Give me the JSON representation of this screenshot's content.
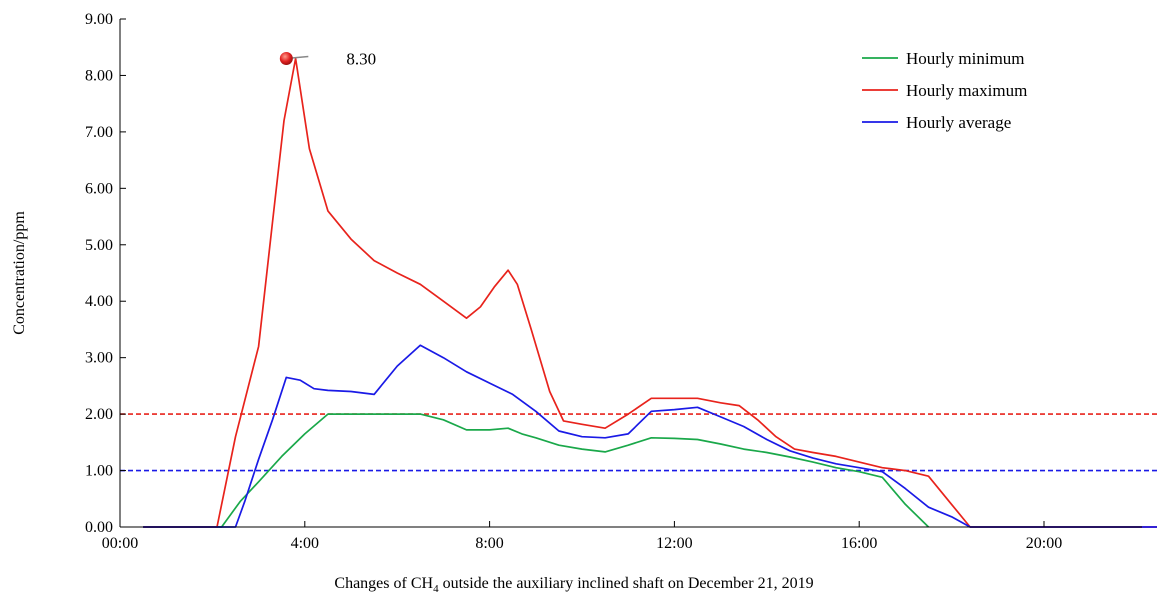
{
  "chart_data": {
    "type": "line",
    "xlabel_prefix": "Changes of CH",
    "xlabel_sub": "4",
    "xlabel_suffix": " outside the auxiliary inclined shaft on December 21, 2019",
    "ylabel": "Concentration/ppm",
    "xlim": [
      0,
      24
    ],
    "ylim": [
      0,
      9
    ],
    "x_ticks": [
      {
        "value": 0,
        "label": "00:00"
      },
      {
        "value": 4,
        "label": "4:00"
      },
      {
        "value": 8,
        "label": "8:00"
      },
      {
        "value": 12,
        "label": "12:00"
      },
      {
        "value": 16,
        "label": "16:00"
      },
      {
        "value": 20,
        "label": "20:00"
      }
    ],
    "y_ticks": [
      {
        "value": 0,
        "label": "0.00"
      },
      {
        "value": 1,
        "label": "1.00"
      },
      {
        "value": 2,
        "label": "2.00"
      },
      {
        "value": 3,
        "label": "3.00"
      },
      {
        "value": 4,
        "label": "4.00"
      },
      {
        "value": 5,
        "label": "5.00"
      },
      {
        "value": 6,
        "label": "6.00"
      },
      {
        "value": 7,
        "label": "7.00"
      },
      {
        "value": 8,
        "label": "8.00"
      },
      {
        "value": 9,
        "label": "9.00"
      }
    ],
    "legend_position": "top-right",
    "grid": false,
    "series": [
      {
        "name": "Hourly minimum",
        "color": "#1aa84a",
        "x": [
          0.5,
          2.0,
          2.2,
          2.6,
          3.0,
          3.5,
          4.0,
          4.5,
          5.0,
          5.5,
          6.0,
          6.5,
          7.0,
          7.5,
          8.0,
          8.4,
          8.7,
          9.0,
          9.5,
          10.0,
          10.5,
          11.0,
          11.5,
          12.0,
          12.5,
          13.0,
          13.5,
          14.0,
          14.5,
          15.0,
          15.5,
          16.0,
          16.5,
          17.0,
          17.5
        ],
        "y": [
          0,
          0,
          0,
          0.45,
          0.8,
          1.25,
          1.65,
          2.0,
          2.0,
          2.0,
          2.0,
          2.0,
          1.9,
          1.72,
          1.72,
          1.75,
          1.65,
          1.58,
          1.45,
          1.38,
          1.33,
          1.45,
          1.58,
          1.57,
          1.55,
          1.47,
          1.38,
          1.32,
          1.24,
          1.15,
          1.05,
          0.98,
          0.88,
          0.4,
          0
        ]
      },
      {
        "name": "Hourly maximum",
        "color": "#e8231c",
        "x": [
          0.5,
          2.1,
          2.5,
          3.0,
          3.3,
          3.55,
          3.8,
          4.1,
          4.5,
          5.0,
          5.5,
          6.0,
          6.5,
          7.0,
          7.5,
          7.8,
          8.1,
          8.4,
          8.6,
          8.9,
          9.3,
          9.6,
          10.0,
          10.5,
          11.0,
          11.5,
          12.0,
          12.5,
          13.0,
          13.4,
          13.8,
          14.2,
          14.6,
          15.0,
          15.5,
          16.0,
          16.5,
          17.0,
          17.5,
          18.0,
          18.4,
          19.0,
          20.0,
          24.0
        ],
        "y": [
          0,
          0,
          1.6,
          3.2,
          5.4,
          7.2,
          8.3,
          6.7,
          5.6,
          5.1,
          4.72,
          4.5,
          4.3,
          4.0,
          3.7,
          3.9,
          4.25,
          4.55,
          4.3,
          3.5,
          2.4,
          1.88,
          1.82,
          1.75,
          2.0,
          2.28,
          2.28,
          2.28,
          2.2,
          2.15,
          1.9,
          1.6,
          1.38,
          1.32,
          1.25,
          1.15,
          1.05,
          1.0,
          0.9,
          0.4,
          0,
          0,
          0,
          0
        ]
      },
      {
        "name": "Hourly average",
        "color": "#1a1ae6",
        "x": [
          0.5,
          2.5,
          2.7,
          3.0,
          3.3,
          3.6,
          3.9,
          4.2,
          4.5,
          5.0,
          5.5,
          6.0,
          6.5,
          7.0,
          7.5,
          8.0,
          8.5,
          9.0,
          9.5,
          10.0,
          10.5,
          11.0,
          11.5,
          12.0,
          12.5,
          13.0,
          13.5,
          14.0,
          14.5,
          15.0,
          15.5,
          16.0,
          16.5,
          17.0,
          17.5,
          18.0,
          18.4,
          19.0,
          20.0,
          24.0
        ],
        "y": [
          0,
          0,
          0.45,
          1.2,
          1.9,
          2.65,
          2.6,
          2.45,
          2.42,
          2.4,
          2.35,
          2.85,
          3.22,
          3.0,
          2.75,
          2.55,
          2.35,
          2.05,
          1.7,
          1.6,
          1.58,
          1.65,
          2.05,
          2.08,
          2.12,
          1.95,
          1.78,
          1.55,
          1.35,
          1.22,
          1.12,
          1.05,
          0.98,
          0.68,
          0.35,
          0.18,
          0,
          0,
          0,
          0
        ]
      }
    ],
    "reference_lines": [
      {
        "y": 2.0,
        "color": "#e8231c",
        "style": "dashed"
      },
      {
        "y": 1.0,
        "color": "#1a1ae6",
        "style": "dashed"
      }
    ],
    "annotation": {
      "x": 3.6,
      "y": 8.3,
      "label": "8.30",
      "marker_color": "#e02020"
    }
  }
}
